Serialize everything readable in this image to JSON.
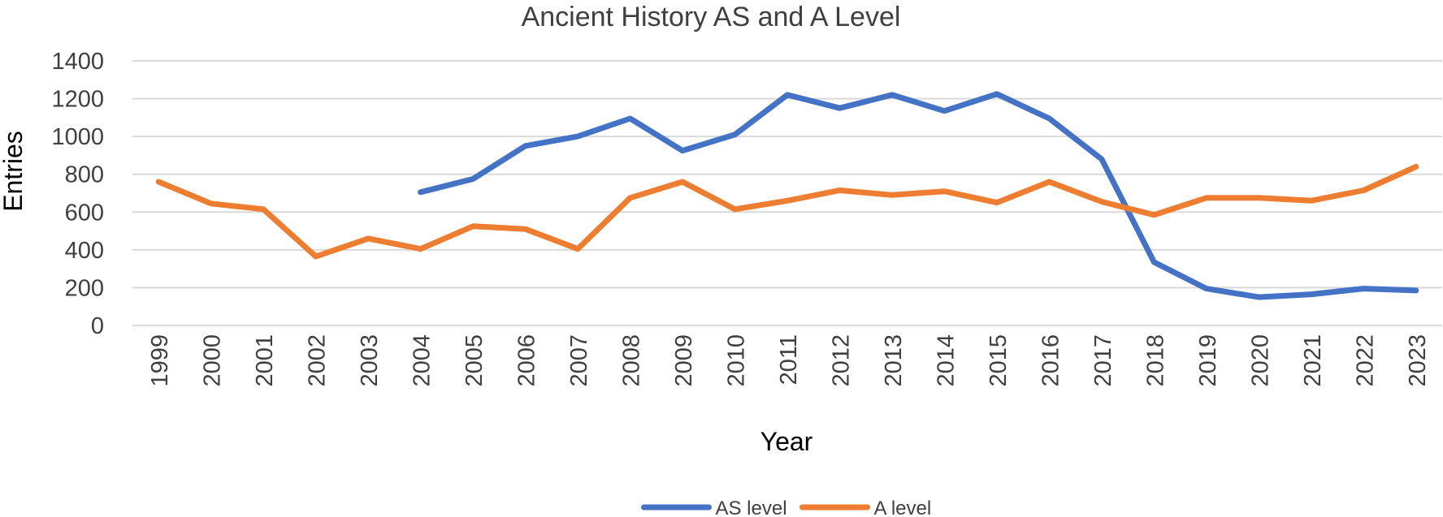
{
  "chart_data": {
    "type": "line",
    "title": "Ancient History AS and A Level",
    "xlabel": "Year",
    "ylabel": "Entries",
    "ylim": [
      0,
      1400
    ],
    "yticks": [
      0,
      200,
      400,
      600,
      800,
      1000,
      1200,
      1400
    ],
    "grid": true,
    "legend_position": "bottom",
    "categories": [
      "1999",
      "2000",
      "2001",
      "2002",
      "2003",
      "2004",
      "2005",
      "2006",
      "2007",
      "2008",
      "2009",
      "2010",
      "2011",
      "2012",
      "2013",
      "2014",
      "2015",
      "2016",
      "2017",
      "2018",
      "2019",
      "2020",
      "2021",
      "2022",
      "2023"
    ],
    "series": [
      {
        "name": "AS level",
        "color": "#4472c4",
        "values": [
          null,
          null,
          null,
          null,
          null,
          705,
          775,
          950,
          1000,
          1095,
          925,
          1010,
          1220,
          1150,
          1220,
          1135,
          1225,
          1095,
          880,
          335,
          195,
          150,
          165,
          195,
          185
        ]
      },
      {
        "name": "A level",
        "color": "#ed7d31",
        "values": [
          760,
          645,
          615,
          365,
          460,
          405,
          525,
          510,
          405,
          675,
          760,
          615,
          660,
          715,
          690,
          710,
          650,
          760,
          655,
          585,
          675,
          675,
          660,
          715,
          840
        ]
      }
    ]
  }
}
